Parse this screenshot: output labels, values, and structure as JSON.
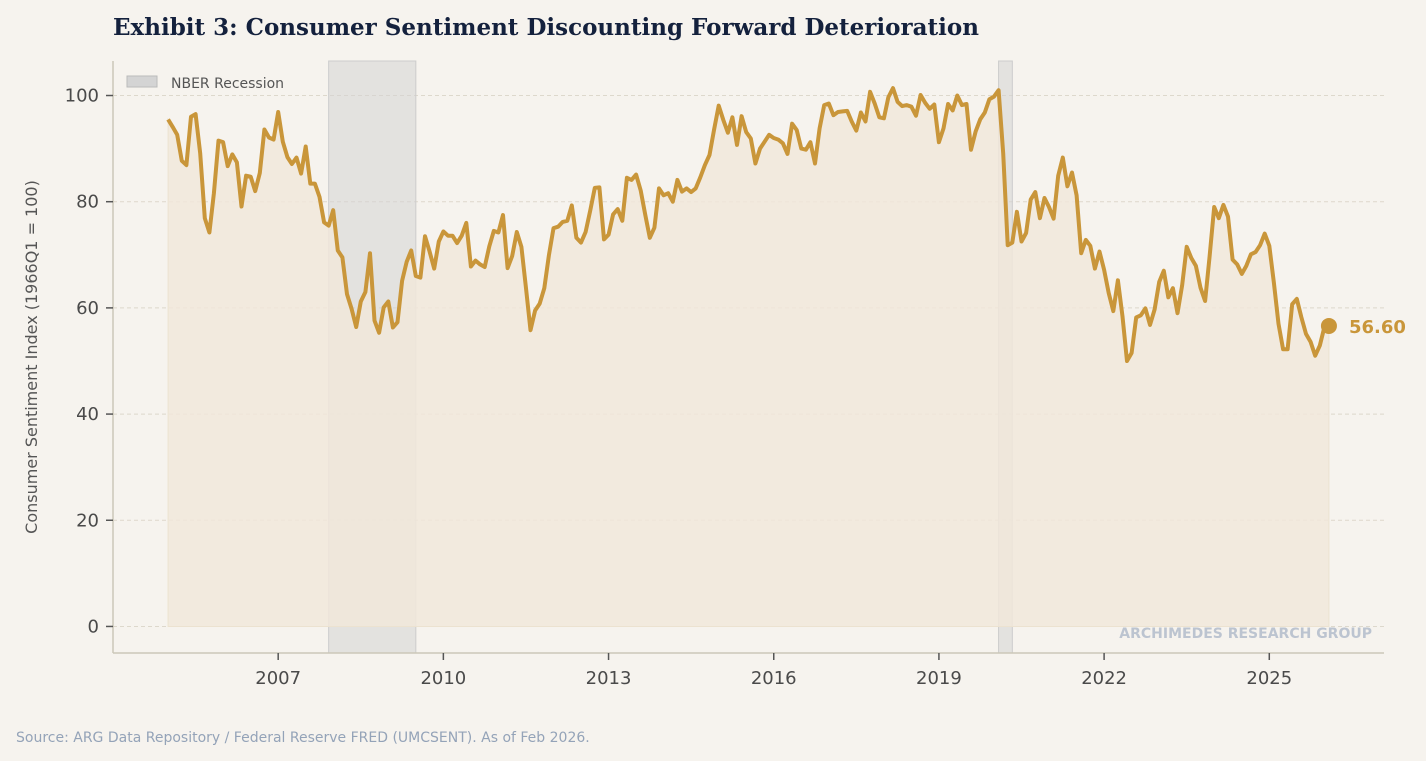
{
  "chart_data": {
    "type": "line",
    "title": "Exhibit 3: Consumer Sentiment Discounting Forward Deterioration",
    "xlabel": "",
    "ylabel": "Consumer Sentiment Index (1966Q1 = 100)",
    "xlim": [
      "2004-01",
      "2027-02"
    ],
    "ylim": [
      -5,
      106.5
    ],
    "x_ticks": [
      "2007",
      "2010",
      "2013",
      "2016",
      "2019",
      "2022",
      "2025"
    ],
    "y_ticks": [
      "0",
      "20",
      "40",
      "60",
      "80",
      "100"
    ],
    "grid": "horizontal dashed",
    "legend": {
      "placement": "top-left",
      "entries": [
        "NBER Recession"
      ]
    },
    "recessions": [
      {
        "start": "2007-12",
        "end": "2009-06"
      },
      {
        "start": "2020-02",
        "end": "2020-04"
      }
    ],
    "series": [
      {
        "start": "2005-01",
        "frequency": "monthly",
        "values": [
          95.5,
          94.1,
          92.6,
          87.7,
          86.9,
          96.0,
          96.5,
          89.1,
          76.9,
          74.2,
          81.6,
          91.5,
          91.2,
          86.7,
          88.9,
          87.4,
          79.1,
          84.9,
          84.7,
          82.0,
          85.4,
          93.6,
          92.1,
          91.7,
          96.9,
          91.3,
          88.4,
          87.1,
          88.3,
          85.3,
          90.4,
          83.4,
          83.4,
          80.9,
          76.1,
          75.5,
          78.4,
          70.8,
          69.5,
          62.6,
          59.8,
          56.4,
          61.2,
          63.0,
          70.3,
          57.6,
          55.3,
          60.1,
          61.2,
          56.3,
          57.3,
          65.1,
          68.7,
          70.8,
          66.0,
          65.7,
          73.5,
          70.6,
          67.4,
          72.5,
          74.4,
          73.6,
          73.6,
          72.2,
          73.6,
          76.0,
          67.8,
          68.9,
          68.2,
          67.7,
          71.6,
          74.5,
          74.2,
          77.5,
          67.5,
          69.8,
          74.3,
          71.5,
          63.7,
          55.8,
          59.5,
          60.8,
          63.7,
          69.9,
          75.0,
          75.3,
          76.2,
          76.4,
          79.3,
          73.2,
          72.3,
          74.3,
          78.3,
          82.6,
          82.7,
          72.9,
          73.8,
          77.6,
          78.6,
          76.4,
          84.5,
          84.1,
          85.1,
          82.1,
          77.5,
          73.2,
          75.1,
          82.5,
          81.2,
          81.6,
          80.0,
          84.1,
          81.9,
          82.5,
          81.8,
          82.5,
          84.6,
          86.9,
          88.8,
          93.6,
          98.1,
          95.4,
          93.0,
          95.9,
          90.7,
          96.1,
          93.1,
          91.9,
          87.2,
          90.0,
          91.3,
          92.6,
          92.0,
          91.7,
          91.0,
          89.0,
          94.7,
          93.5,
          90.0,
          89.8,
          91.2,
          87.2,
          93.8,
          98.2,
          98.5,
          96.3,
          96.9,
          97.0,
          97.1,
          95.1,
          93.4,
          96.8,
          95.1,
          100.7,
          98.5,
          95.9,
          95.7,
          99.7,
          101.4,
          98.8,
          98.0,
          98.2,
          97.9,
          96.2,
          100.1,
          98.6,
          97.5,
          98.3,
          91.2,
          93.8,
          98.4,
          97.2,
          100.0,
          98.2,
          98.4,
          89.8,
          93.2,
          95.5,
          96.8,
          99.3,
          99.8,
          101.0,
          89.1,
          71.8,
          72.3,
          78.1,
          72.5,
          74.1,
          80.4,
          81.8,
          76.9,
          80.7,
          79.0,
          76.8,
          84.9,
          88.3,
          82.9,
          85.5,
          81.2,
          70.3,
          72.8,
          71.7,
          67.4,
          70.6,
          67.2,
          62.8,
          59.4,
          65.2,
          58.4,
          50.0,
          51.5,
          58.2,
          58.6,
          59.9,
          56.8,
          59.7,
          64.9,
          67.0,
          62.0,
          63.7,
          59.0,
          64.2,
          71.5,
          69.4,
          67.9,
          63.8,
          61.3,
          69.7,
          79.0,
          76.9,
          79.4,
          77.2,
          69.1,
          68.2,
          66.4,
          67.9,
          70.1,
          70.5,
          71.8,
          74.0,
          71.7,
          64.7,
          57.0,
          52.2,
          52.2,
          60.7,
          61.7,
          58.2,
          55.1,
          53.6,
          51.0,
          52.9,
          56.4,
          56.6
        ]
      }
    ],
    "end_label": "56.60",
    "watermark": "ARCHIMEDES RESEARCH GROUP",
    "source": "Source: ARG Data Repository / Federal Reserve FRED (UMCSENT). As of Feb 2026.",
    "colors": {
      "line": "#c9963a",
      "fill": "#f1e8da",
      "recession": "#d4d4d4",
      "title": "#14213d",
      "background": "#f6f3ee"
    }
  }
}
